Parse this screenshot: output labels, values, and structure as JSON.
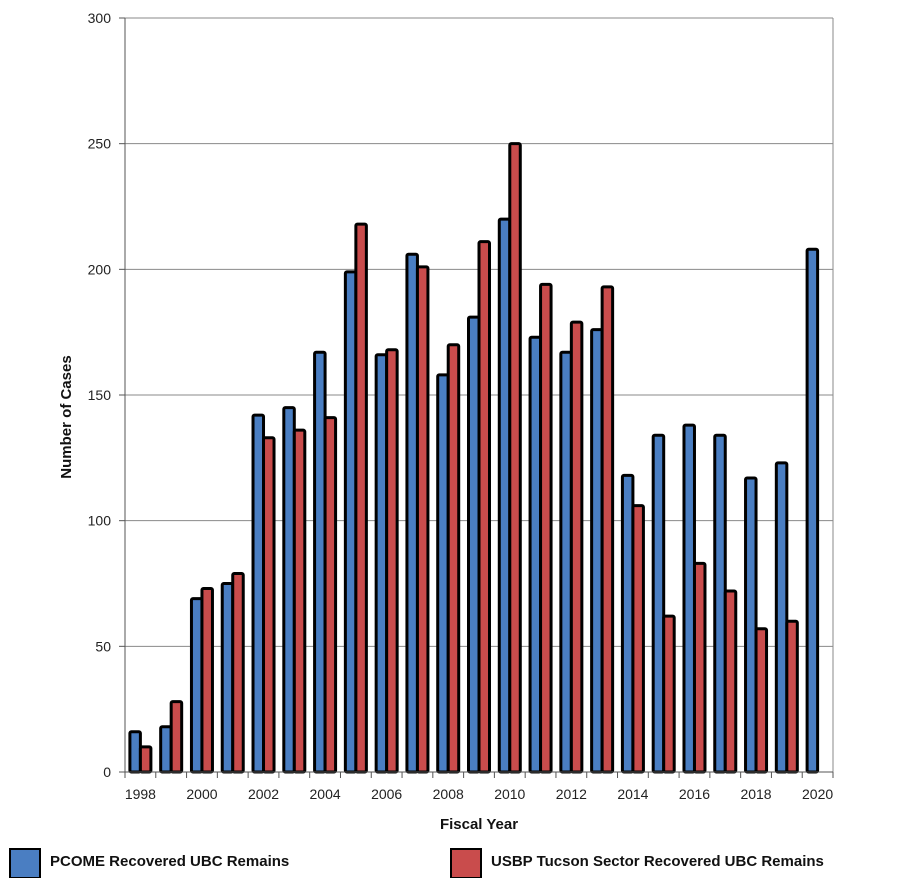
{
  "chart_data": {
    "type": "bar",
    "title": "",
    "xlabel": "Fiscal Year",
    "ylabel": "Number of Cases",
    "ylim": [
      0,
      300
    ],
    "yticks": [
      0,
      50,
      100,
      150,
      200,
      250,
      300
    ],
    "grid": true,
    "legend_position": "bottom",
    "categories": [
      "1998",
      "1999",
      "2000",
      "2001",
      "2002",
      "2003",
      "2004",
      "2005",
      "2006",
      "2007",
      "2008",
      "2009",
      "2010",
      "2011",
      "2012",
      "2013",
      "2014",
      "2015",
      "2016",
      "2017",
      "2018",
      "2019",
      "2020"
    ],
    "xtick_labels": [
      "1998",
      "",
      "2000",
      "",
      "2002",
      "",
      "2004",
      "",
      "2006",
      "",
      "2008",
      "",
      "2010",
      "",
      "2012",
      "",
      "2014",
      "",
      "2016",
      "",
      "2018",
      "",
      "2020"
    ],
    "series": [
      {
        "name": "PCOME Recovered UBC Remains",
        "color": "#4a7ec2",
        "values": [
          16,
          18,
          69,
          75,
          142,
          145,
          167,
          199,
          166,
          206,
          158,
          181,
          220,
          173,
          167,
          176,
          118,
          134,
          138,
          134,
          117,
          123,
          208
        ]
      },
      {
        "name": "USBP Tucson Sector Recovered UBC Remains",
        "color": "#c94c4c",
        "values": [
          10,
          28,
          73,
          79,
          133,
          136,
          141,
          218,
          168,
          201,
          170,
          211,
          250,
          194,
          179,
          193,
          106,
          62,
          83,
          72,
          57,
          60,
          null
        ]
      }
    ]
  }
}
